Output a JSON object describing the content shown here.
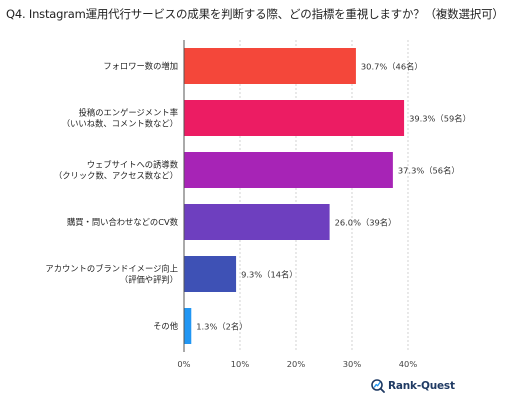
{
  "chart_data": {
    "type": "bar",
    "orientation": "horizontal",
    "title": "Q4. Instagram運用代行サービスの成果を判断する際、どの指標を重視しますか？（複数選択可）",
    "categories": [
      [
        "フォロワー数の増加"
      ],
      [
        "投稿のエンゲージメント率",
        "（いいね数、コメント数など）"
      ],
      [
        "ウェブサイトへの誘導数",
        "（クリック数、アクセス数など）"
      ],
      [
        "購買・問い合わせなどのCV数"
      ],
      [
        "アカウントのブランドイメージ向上",
        "（評価や評判）"
      ],
      [
        "その他"
      ]
    ],
    "values": [
      30.7,
      39.3,
      37.3,
      26.0,
      9.3,
      1.3
    ],
    "data_labels": [
      "30.7%（46名）",
      "39.3%（59名）",
      "37.3%（56名）",
      "26.0%（39名）",
      "9.3%（14名）",
      "1.3%（2名）"
    ],
    "bar_colors": [
      "#f4473a",
      "#ec1c63",
      "#a724b6",
      "#6e3fbf",
      "#3e51b5",
      "#2196f3"
    ],
    "xlim": [
      0,
      45
    ],
    "xticks": [
      0,
      10,
      20,
      30,
      40
    ],
    "xtick_labels": [
      "0%",
      "10%",
      "20%",
      "30%",
      "40%"
    ],
    "xlabel": "",
    "ylabel": "",
    "grid": "vertical-dashed",
    "legend": "none"
  },
  "brand": {
    "logo_text": "Rank-Quest",
    "logo_icon": "rank-quest-logo-icon",
    "color": "#1f3a63"
  }
}
